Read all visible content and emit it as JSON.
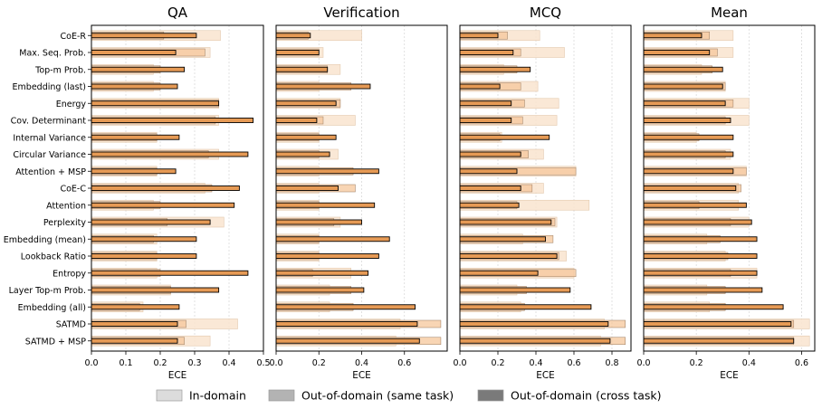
{
  "chart_data": {
    "type": "bar",
    "orientation": "horizontal",
    "xlabel": "ECE",
    "legend": {
      "placement": "bottom",
      "entries": [
        {
          "name": "In-domain",
          "color": "#dcdcdc"
        },
        {
          "name": "Out-of-domain (same task)",
          "color": "#b3b3b3"
        },
        {
          "name": "Out-of-domain (cross task)",
          "color": "#7a7a7a"
        }
      ]
    },
    "categories": [
      "CoE-R",
      "Max. Seq. Prob.",
      "Top-m Prob.",
      "Embedding (last)",
      "Energy",
      "Cov. Determinant",
      "Internal Variance",
      "Circular Variance",
      "Attention + MSP",
      "CoE-C",
      "Attention",
      "Perplexity",
      "Embedding (mean)",
      "Lookback Ratio",
      "Entropy",
      "Layer Top-m Prob.",
      "Embedding (all)",
      "SATMD",
      "SATMD + MSP"
    ],
    "colors": {
      "in_domain_fill": "#fde7d2",
      "same_task_fill": "#f6c79b",
      "cross_task_fill": "#e69a55",
      "grey_backdrop": "#c8c8c8"
    },
    "panels": [
      {
        "title": "QA",
        "xlim": [
          0,
          0.5
        ],
        "xticks": [
          "0.0",
          "0.1",
          "0.2",
          "0.3",
          "0.4",
          "0.5"
        ],
        "in_domain": [
          0.375,
          0.345,
          0.18,
          0.18,
          0.37,
          0.37,
          0.19,
          0.37,
          0.19,
          0.33,
          0.18,
          0.385,
          0.19,
          0.19,
          0.19,
          0.23,
          0.15,
          0.425,
          0.345
        ],
        "same_task": [
          0.21,
          0.33,
          0.2,
          0.2,
          0.37,
          0.36,
          0.19,
          0.34,
          0.19,
          0.35,
          0.2,
          0.22,
          0.18,
          0.19,
          0.2,
          0.23,
          0.14,
          0.275,
          0.27
        ],
        "cross_task": [
          0.305,
          0.245,
          0.27,
          0.25,
          0.37,
          0.47,
          0.255,
          0.455,
          0.245,
          0.43,
          0.415,
          0.345,
          0.305,
          0.305,
          0.455,
          0.37,
          0.255,
          0.25,
          0.25
        ]
      },
      {
        "title": "Verification",
        "xlim": [
          0,
          0.8
        ],
        "xticks": [
          "0.0",
          "0.2",
          "0.4",
          "0.6"
        ],
        "in_domain": [
          0.4,
          0.22,
          0.3,
          0.2,
          0.3,
          0.37,
          0.2,
          0.29,
          0.2,
          0.2,
          0.2,
          0.3,
          0.2,
          0.2,
          0.35,
          0.25,
          0.25,
          0.58,
          0.56
        ],
        "same_task": [
          0.15,
          0.2,
          0.24,
          0.35,
          0.3,
          0.22,
          0.2,
          0.2,
          0.36,
          0.37,
          0.2,
          0.27,
          0.2,
          0.2,
          0.17,
          0.35,
          0.36,
          0.77,
          0.77
        ],
        "cross_task": [
          0.16,
          0.2,
          0.24,
          0.44,
          0.28,
          0.19,
          0.28,
          0.25,
          0.48,
          0.29,
          0.46,
          0.4,
          0.53,
          0.48,
          0.43,
          0.41,
          0.65,
          0.66,
          0.67
        ]
      },
      {
        "title": "MCQ",
        "xlim": [
          0,
          0.9
        ],
        "xticks": [
          "0.0",
          "0.2",
          "0.4",
          "0.6",
          "0.8"
        ],
        "in_domain": [
          0.42,
          0.55,
          0.23,
          0.41,
          0.52,
          0.51,
          0.22,
          0.44,
          0.61,
          0.44,
          0.68,
          0.51,
          0.33,
          0.56,
          0.6,
          0.3,
          0.32,
          0.76,
          0.74
        ],
        "same_task": [
          0.25,
          0.32,
          0.3,
          0.32,
          0.34,
          0.33,
          0.21,
          0.36,
          0.61,
          0.38,
          0.3,
          0.5,
          0.49,
          0.52,
          0.61,
          0.35,
          0.34,
          0.87,
          0.87
        ],
        "cross_task": [
          0.2,
          0.28,
          0.37,
          0.21,
          0.27,
          0.27,
          0.47,
          0.32,
          0.3,
          0.32,
          0.31,
          0.48,
          0.45,
          0.51,
          0.41,
          0.58,
          0.69,
          0.78,
          0.79
        ]
      },
      {
        "title": "Mean",
        "xlim": [
          0,
          0.65
        ],
        "xticks": [
          "0.0",
          "0.2",
          "0.4",
          "0.6"
        ],
        "in_domain": [
          0.34,
          0.34,
          0.22,
          0.31,
          0.4,
          0.4,
          0.2,
          0.33,
          0.39,
          0.36,
          0.36,
          0.4,
          0.24,
          0.31,
          0.43,
          0.24,
          0.25,
          0.63,
          0.63
        ],
        "same_task": [
          0.25,
          0.28,
          0.26,
          0.31,
          0.34,
          0.31,
          0.21,
          0.31,
          0.39,
          0.37,
          0.21,
          0.33,
          0.29,
          0.32,
          0.33,
          0.31,
          0.31,
          0.57,
          0.57
        ],
        "cross_task": [
          0.22,
          0.25,
          0.3,
          0.3,
          0.31,
          0.33,
          0.34,
          0.34,
          0.34,
          0.35,
          0.39,
          0.41,
          0.43,
          0.43,
          0.43,
          0.45,
          0.53,
          0.56,
          0.57
        ]
      }
    ]
  }
}
